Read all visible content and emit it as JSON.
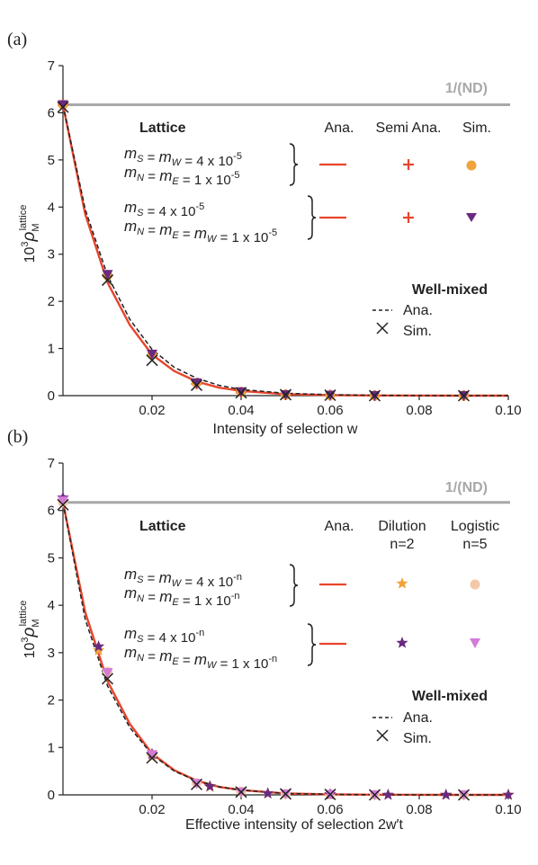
{
  "chart_data": [
    {
      "panel_label": "(a)",
      "type": "line",
      "xlabel": "Intensity of selection w",
      "ylabel_base": "10",
      "ylabel_exp": "3",
      "ylabel_symbol": "ρ",
      "ylabel_sub": "M",
      "ylabel_sup": "lattice",
      "xlim": [
        0,
        0.1
      ],
      "ylim": [
        0,
        7
      ],
      "xticks": [
        "0.02",
        "0.04",
        "0.06",
        "0.08",
        "0.10"
      ],
      "yticks": [
        "0",
        "1",
        "2",
        "3",
        "4",
        "5",
        "6",
        "7"
      ],
      "reference_line": {
        "y": 6.17,
        "label": "1/(ND)",
        "color": "#a8a8a8"
      },
      "legend": {
        "lattice_title": "Lattice",
        "col_headers": [
          "Ana.",
          "Semi Ana.",
          "Sim."
        ],
        "rows": [
          {
            "formula_line1": "m_S = m_W = 4 x 10^-5",
            "formula_line2": "m_N = m_E = 1 x 10^-5"
          },
          {
            "formula_line1": "m_S = 4 x 10^-5",
            "formula_line2": "m_N = m_E = m_W = 1 x 10^-5"
          }
        ],
        "wellmixed_title": "Well-mixed",
        "wellmixed_entries": [
          "Ana.",
          "Sim."
        ]
      },
      "series": [
        {
          "marker": "line",
          "color": "#e8452c",
          "x": [
            0,
            0.005,
            0.01,
            0.015,
            0.02,
            0.025,
            0.03,
            0.035,
            0.04,
            0.05,
            0.06,
            0.07,
            0.08,
            0.09,
            0.1
          ],
          "y": [
            6.17,
            3.85,
            2.4,
            1.5,
            0.87,
            0.52,
            0.3,
            0.17,
            0.1,
            0.03,
            0.01,
            0.003,
            0.001,
            0.0,
            0.0
          ]
        },
        {
          "marker": "dashed",
          "color": "#222222",
          "x": [
            0,
            0.005,
            0.01,
            0.015,
            0.02,
            0.025,
            0.03,
            0.035,
            0.04,
            0.05,
            0.06,
            0.07,
            0.08,
            0.09,
            0.1
          ],
          "y": [
            6.17,
            3.95,
            2.55,
            1.62,
            0.98,
            0.6,
            0.37,
            0.22,
            0.13,
            0.05,
            0.02,
            0.007,
            0.002,
            0.0,
            0.0
          ]
        },
        {
          "marker": "plus",
          "color": "#e8452c",
          "x": [
            0,
            0.01,
            0.02,
            0.03,
            0.04,
            0.05,
            0.06,
            0.07,
            0.09
          ],
          "y": [
            6.17,
            2.55,
            0.85,
            0.25,
            0.07,
            0.02,
            0.01,
            0.0,
            0.0
          ]
        },
        {
          "marker": "circle",
          "color": "#f0a33c",
          "x": [
            0,
            0.01,
            0.02,
            0.03,
            0.04,
            0.05,
            0.06,
            0.07,
            0.09
          ],
          "y": [
            6.17,
            2.55,
            0.87,
            0.27,
            0.08,
            0.02,
            0.01,
            0.0,
            0.0
          ]
        },
        {
          "marker": "triangle",
          "color": "#6a2a80",
          "x": [
            0,
            0.01,
            0.02,
            0.03,
            0.04,
            0.05,
            0.06,
            0.07,
            0.09
          ],
          "y": [
            6.17,
            2.57,
            0.88,
            0.27,
            0.08,
            0.02,
            0.01,
            0.0,
            0.0
          ]
        },
        {
          "marker": "cross",
          "color": "#222222",
          "x": [
            0,
            0.01,
            0.02,
            0.03,
            0.04,
            0.05,
            0.06,
            0.07,
            0.09
          ],
          "y": [
            6.12,
            2.45,
            0.75,
            0.22,
            0.06,
            0.02,
            0.01,
            0.0,
            0.0
          ]
        }
      ]
    },
    {
      "panel_label": "(b)",
      "type": "line",
      "xlabel": "Effective intensity of selection 2w′t",
      "ylabel_base": "10",
      "ylabel_exp": "3",
      "ylabel_symbol": "ρ",
      "ylabel_sub": "M",
      "ylabel_sup": "lattice",
      "xlim": [
        0,
        0.1
      ],
      "ylim": [
        0,
        7
      ],
      "xticks": [
        "0.02",
        "0.04",
        "0.06",
        "0.08",
        "0.10"
      ],
      "yticks": [
        "0",
        "1",
        "2",
        "3",
        "4",
        "5",
        "6",
        "7"
      ],
      "reference_line": {
        "y": 6.17,
        "label": "1/(ND)",
        "color": "#a8a8a8"
      },
      "legend": {
        "lattice_title": "Lattice",
        "col_headers": [
          "Ana.",
          "Dilution\nn=2",
          "Logistic\nn=5"
        ],
        "rows": [
          {
            "formula_line1": "m_S = m_W = 4 x 10^-n",
            "formula_line2": "m_N = m_E = 1 x 10^-n"
          },
          {
            "formula_line1": "m_S = 4 x 10^-n",
            "formula_line2": "m_N = m_E = m_W = 1 x 10^-n"
          }
        ],
        "wellmixed_title": "Well-mixed",
        "wellmixed_entries": [
          "Ana.",
          "Sim."
        ]
      },
      "series": [
        {
          "marker": "line",
          "color": "#e8452c",
          "x": [
            0,
            0.005,
            0.01,
            0.015,
            0.02,
            0.025,
            0.03,
            0.035,
            0.04,
            0.05,
            0.06,
            0.07,
            0.08,
            0.09,
            0.1
          ],
          "y": [
            6.17,
            3.85,
            2.4,
            1.5,
            0.87,
            0.52,
            0.3,
            0.17,
            0.1,
            0.03,
            0.01,
            0.003,
            0.001,
            0.0,
            0.0
          ]
        },
        {
          "marker": "dashed",
          "color": "#222222",
          "x": [
            0,
            0.005,
            0.01,
            0.015,
            0.02,
            0.025,
            0.03,
            0.035,
            0.04,
            0.05,
            0.06,
            0.07,
            0.08,
            0.09,
            0.1
          ],
          "y": [
            6.17,
            3.7,
            2.3,
            1.42,
            0.85,
            0.5,
            0.3,
            0.17,
            0.1,
            0.03,
            0.01,
            0.003,
            0.001,
            0.0,
            0.0
          ]
        },
        {
          "marker": "star",
          "color": "#f0a33c",
          "x": [
            0,
            0.008,
            0.02,
            0.033,
            0.046,
            0.06,
            0.073,
            0.086,
            0.1
          ],
          "y": [
            6.2,
            3.05,
            0.8,
            0.17,
            0.03,
            0.01,
            0.0,
            0.0,
            0.0
          ]
        },
        {
          "marker": "circle",
          "color": "#f5c8a8",
          "x": [
            0,
            0.01,
            0.02,
            0.03,
            0.04,
            0.05,
            0.06,
            0.07,
            0.09
          ],
          "y": [
            6.17,
            2.6,
            0.85,
            0.25,
            0.07,
            0.02,
            0.01,
            0.0,
            0.0
          ]
        },
        {
          "marker": "star",
          "color": "#6a2a80",
          "x": [
            0,
            0.008,
            0.02,
            0.033,
            0.046,
            0.06,
            0.073,
            0.086,
            0.1
          ],
          "y": [
            6.27,
            3.13,
            0.86,
            0.18,
            0.03,
            0.01,
            0.0,
            0.0,
            0.0
          ]
        },
        {
          "marker": "triangle",
          "color": "#d47ad8",
          "x": [
            0,
            0.01,
            0.02,
            0.03,
            0.04,
            0.05,
            0.06,
            0.07,
            0.09
          ],
          "y": [
            6.2,
            2.58,
            0.85,
            0.24,
            0.06,
            0.02,
            0.01,
            0.0,
            0.0
          ]
        },
        {
          "marker": "cross",
          "color": "#222222",
          "x": [
            0,
            0.01,
            0.02,
            0.03,
            0.04,
            0.05,
            0.06,
            0.07,
            0.09
          ],
          "y": [
            6.12,
            2.45,
            0.78,
            0.22,
            0.06,
            0.02,
            0.01,
            0.0,
            0.0
          ]
        }
      ]
    }
  ]
}
